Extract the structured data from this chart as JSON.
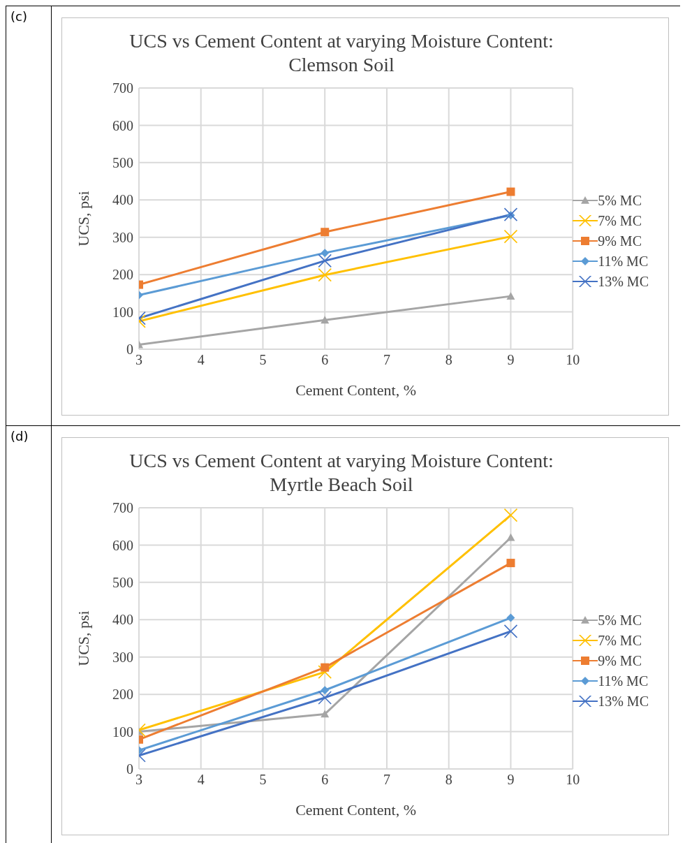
{
  "chart_data": [
    {
      "type": "line",
      "title": "UCS vs Cement Content at varying Moisture Content: Clemson Soil",
      "xlabel": "Cement Content, %",
      "ylabel": "UCS, psi",
      "annotations": [
        "(c)"
      ],
      "x": [
        3,
        6,
        9
      ],
      "xlim": [
        3,
        10
      ],
      "xticks": [
        3,
        4,
        5,
        6,
        7,
        8,
        9,
        10
      ],
      "ylim": [
        0,
        700
      ],
      "yticks": [
        0,
        100,
        200,
        300,
        400,
        500,
        600,
        700
      ],
      "grid": true,
      "legend": "right",
      "series": [
        {
          "name": "5% MC",
          "color": "#a5a5a5",
          "marker": "triangle",
          "values": [
            12,
            78,
            142
          ]
        },
        {
          "name": "7% MC",
          "color": "#ffc000",
          "marker": "cross",
          "values": [
            75,
            199,
            302
          ]
        },
        {
          "name": "9% MC",
          "color": "#ed7d31",
          "marker": "square",
          "values": [
            173,
            314,
            422
          ]
        },
        {
          "name": "11% MC",
          "color": "#5b9bd5",
          "marker": "diamond",
          "values": [
            145,
            258,
            359
          ]
        },
        {
          "name": "13% MC",
          "color": "#4472c4",
          "marker": "cross",
          "values": [
            83,
            237,
            361
          ]
        }
      ]
    },
    {
      "type": "line",
      "title": "UCS vs Cement Content at varying Moisture Content: Myrtle Beach Soil",
      "xlabel": "Cement Content, %",
      "ylabel": "UCS, psi",
      "annotations": [
        "(d)"
      ],
      "x": [
        3,
        6,
        9
      ],
      "xlim": [
        3,
        10
      ],
      "xticks": [
        3,
        4,
        5,
        6,
        7,
        8,
        9,
        10
      ],
      "ylim": [
        0,
        700
      ],
      "yticks": [
        0,
        100,
        200,
        300,
        400,
        500,
        600,
        700
      ],
      "grid": true,
      "legend": "right",
      "series": [
        {
          "name": "5% MC",
          "color": "#a5a5a5",
          "marker": "triangle",
          "values": [
            100,
            147,
            620
          ]
        },
        {
          "name": "7% MC",
          "color": "#ffc000",
          "marker": "cross",
          "values": [
            104,
            260,
            680
          ]
        },
        {
          "name": "9% MC",
          "color": "#ed7d31",
          "marker": "square",
          "values": [
            79,
            272,
            552
          ]
        },
        {
          "name": "11% MC",
          "color": "#5b9bd5",
          "marker": "diamond",
          "values": [
            50,
            211,
            405
          ]
        },
        {
          "name": "13% MC",
          "color": "#4472c4",
          "marker": "cross",
          "values": [
            36,
            191,
            369
          ]
        }
      ]
    }
  ]
}
